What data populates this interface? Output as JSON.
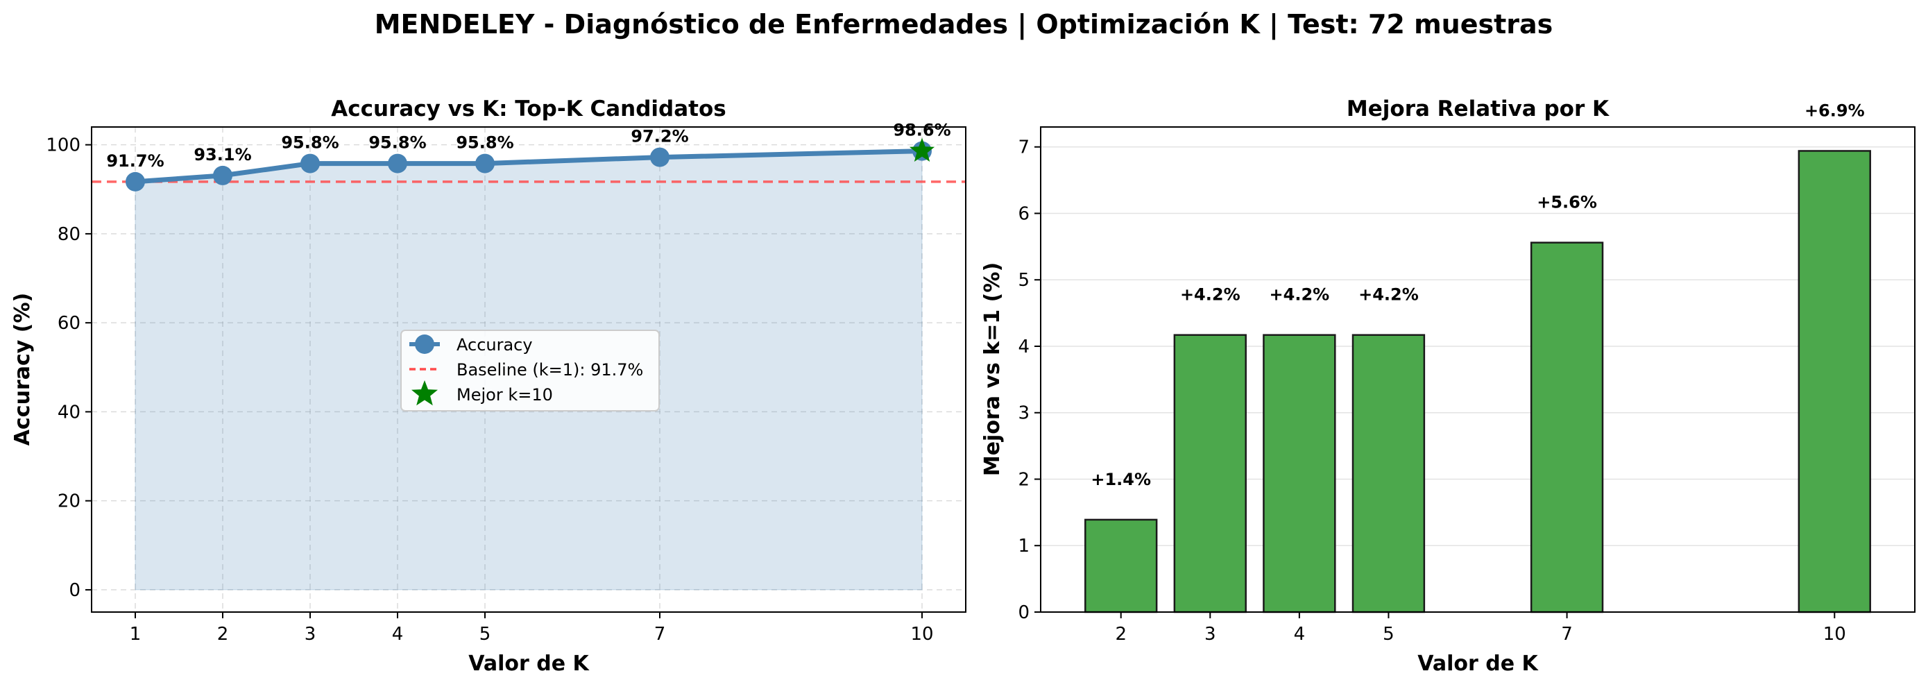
{
  "figure": {
    "suptitle": "MENDELEY - Diagnóstico de Enfermedades | Optimización K | Test: 72 muestras"
  },
  "chart_data": [
    {
      "type": "line",
      "title": "Accuracy vs K: Top-K Candidatos",
      "xlabel": "Valor de K",
      "ylabel": "Accuracy (%)",
      "x": [
        1,
        2,
        3,
        4,
        5,
        7,
        10
      ],
      "x_ticks": [
        "1",
        "2",
        "3",
        "4",
        "5",
        "7",
        "10"
      ],
      "xlim": [
        0.5,
        10.5
      ],
      "ylim": [
        -5,
        104
      ],
      "y_ticks": [
        0,
        20,
        40,
        60,
        80,
        100
      ],
      "grid": true,
      "fill_under_line": true,
      "legend_position": "center",
      "series": [
        {
          "name": "Accuracy",
          "values": [
            91.7,
            93.1,
            95.8,
            95.8,
            95.8,
            97.2,
            98.6
          ],
          "data_labels": [
            "91.7%",
            "93.1%",
            "95.8%",
            "95.8%",
            "95.8%",
            "97.2%",
            "98.6%"
          ],
          "color": "#4682b4",
          "marker": "circle"
        }
      ],
      "reference_lines": [
        {
          "name": "Baseline (k=1): 91.7%",
          "y": 91.7,
          "color": "#ff4d4d",
          "style": "dashed"
        }
      ],
      "highlight": {
        "name": "Mejor k=10",
        "x": 10,
        "y": 98.6,
        "color": "#008000",
        "marker": "star"
      }
    },
    {
      "type": "bar",
      "title": "Mejora Relativa por K",
      "xlabel": "Valor de K",
      "ylabel": "Mejora vs k=1 (%)",
      "x": [
        2,
        3,
        4,
        5,
        7,
        10
      ],
      "x_ticks": [
        "2",
        "3",
        "4",
        "5",
        "7",
        "10"
      ],
      "xlim": [
        1.1,
        10.9
      ],
      "ylim": [
        0,
        7.3
      ],
      "y_ticks": [
        0,
        1,
        2,
        3,
        4,
        5,
        6,
        7
      ],
      "grid": "y",
      "series": [
        {
          "values": [
            1.39,
            4.17,
            4.17,
            4.17,
            5.56,
            6.94
          ],
          "data_labels": [
            "+1.4%",
            "+4.2%",
            "+4.2%",
            "+4.2%",
            "+5.6%",
            "+6.9%"
          ],
          "color": "#4ca84c"
        }
      ]
    }
  ]
}
